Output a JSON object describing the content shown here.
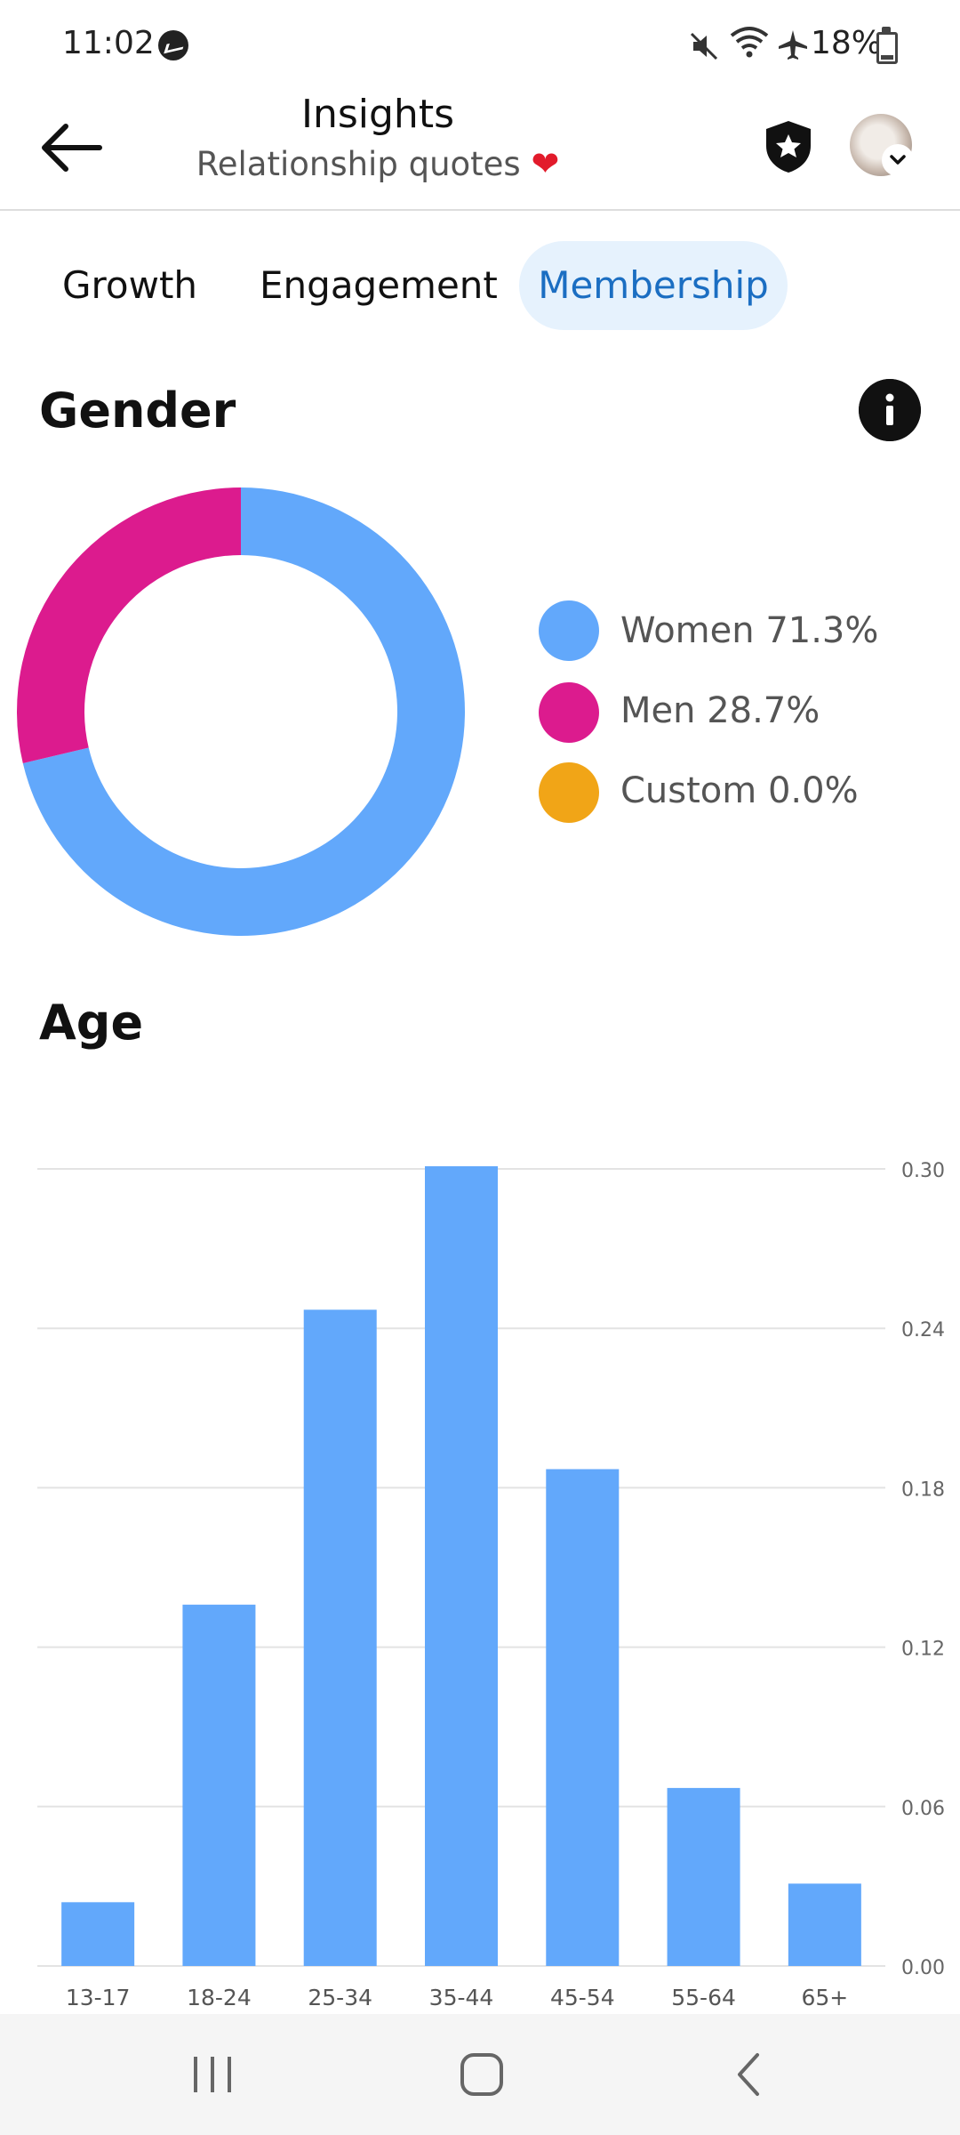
{
  "status_bar": {
    "time": "11:02",
    "battery": "18%"
  },
  "header": {
    "title": "Insights",
    "subtitle": "Relationship quotes"
  },
  "tabs": [
    {
      "label": "Growth"
    },
    {
      "label": "Engagement"
    },
    {
      "label": "Membership",
      "active": true
    }
  ],
  "gender": {
    "heading": "Gender",
    "legend": [
      {
        "label": "Women 71.3%",
        "color": "#62a8fb"
      },
      {
        "label": "Men 28.7%",
        "color": "#dc1b8e"
      },
      {
        "label": "Custom 0.0%",
        "color": "#f1a517"
      }
    ]
  },
  "age": {
    "heading": "Age"
  },
  "chart_data": [
    {
      "type": "pie",
      "title": "Gender",
      "categories": [
        "Women",
        "Men",
        "Custom"
      ],
      "values": [
        71.3,
        28.7,
        0.0
      ],
      "colors": [
        "#62a8fb",
        "#dc1b8e",
        "#f1a517"
      ],
      "legend": "right"
    },
    {
      "type": "bar",
      "title": "Age",
      "categories": [
        "13-17",
        "18-24",
        "25-34",
        "35-44",
        "45-54",
        "55-64",
        "65+"
      ],
      "values": [
        0.024,
        0.136,
        0.247,
        0.301,
        0.187,
        0.067,
        0.031
      ],
      "yticks": [
        "0.00",
        "0.06",
        "0.12",
        "0.18",
        "0.24",
        "0.30"
      ],
      "ylim": [
        0,
        0.3
      ],
      "color": "#62a8fb",
      "grid": true
    }
  ]
}
